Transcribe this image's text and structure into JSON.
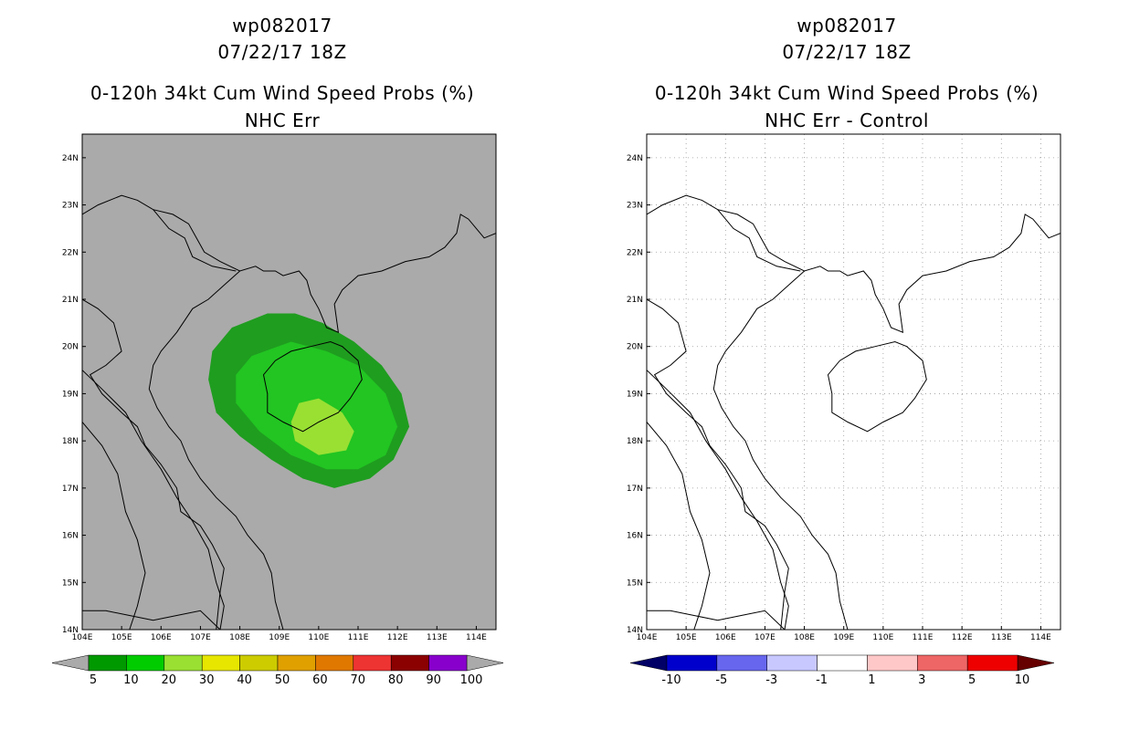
{
  "left_panel": {
    "storm_id": "wp082017",
    "datetime": "07/22/17 18Z",
    "product": "0-120h 34kt Cum Wind Speed Probs (%)",
    "subtitle": "NHC Err",
    "background_color": "#aaaaaa",
    "colorbar": {
      "labels": [
        "5",
        "10",
        "20",
        "30",
        "40",
        "50",
        "60",
        "70",
        "80",
        "90",
        "100"
      ],
      "colors": [
        "#009900",
        "#00cc00",
        "#99e033",
        "#e6e600",
        "#cccc00",
        "#e0a000",
        "#e07800",
        "#ee3333",
        "#8b0000",
        "#8800cc"
      ]
    },
    "probability_contours": [
      {
        "label": "5-10%",
        "color": "#1f9d1f"
      },
      {
        "label": "10-20%",
        "color": "#22c522"
      },
      {
        "label": "20-30%",
        "color": "#99e033"
      }
    ]
  },
  "right_panel": {
    "storm_id": "wp082017",
    "datetime": "07/22/17 18Z",
    "product": "0-120h 34kt Cum Wind Speed Probs (%)",
    "subtitle": "NHC Err - Control",
    "background_color": "#ffffff",
    "colorbar": {
      "labels": [
        "-10",
        "-5",
        "-3",
        "-1",
        "1",
        "3",
        "5",
        "10"
      ],
      "colors": [
        "#0000cc",
        "#6666ee",
        "#c8c8ff",
        "#ffffff",
        "#ffc8c8",
        "#ee6666",
        "#ee0000"
      ]
    }
  },
  "axes": {
    "lon_labels": [
      "104E",
      "105E",
      "106E",
      "107E",
      "108E",
      "109E",
      "110E",
      "111E",
      "112E",
      "113E",
      "114E"
    ],
    "lat_labels": [
      "24N",
      "23N",
      "22N",
      "21N",
      "20N",
      "19N",
      "18N",
      "17N",
      "16N",
      "15N",
      "14N"
    ],
    "lon_range": [
      104,
      114.5
    ],
    "lat_range": [
      14,
      24.5
    ]
  },
  "colors": {
    "coastline": "#000000",
    "grid": "#999999"
  }
}
